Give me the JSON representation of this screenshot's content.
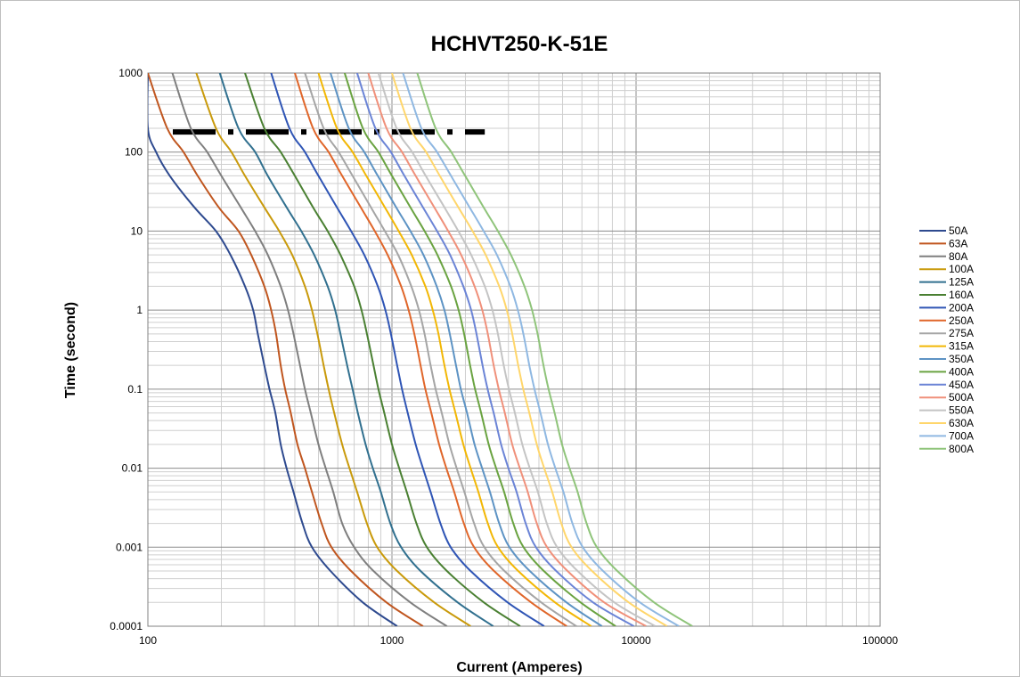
{
  "chart_data": {
    "type": "line",
    "title": "HCHVT250-K-51E",
    "xlabel": "Current (Amperes)",
    "ylabel": "Time (second)",
    "x_scale": "log",
    "y_scale": "log",
    "xlim": [
      100,
      100000
    ],
    "ylim": [
      0.0001,
      1000
    ],
    "x_ticks": [
      "100",
      "1000",
      "10000",
      "100000"
    ],
    "y_ticks": [
      "0.0001",
      "0.001",
      "0.01",
      "0.1",
      "1",
      "10",
      "100",
      "1000"
    ],
    "grid": "major and minor",
    "legend_position": "right",
    "reference_line": {
      "style": "dash-dot",
      "color": "#000000",
      "y": 180,
      "x_range": [
        100,
        2400
      ]
    },
    "curve_time_points": [
      1000,
      200,
      100,
      50,
      20,
      10,
      5,
      2,
      1,
      0.5,
      0.2,
      0.1,
      0.05,
      0.02,
      0.01,
      0.005,
      0.002,
      0.001,
      0.0005,
      0.0002,
      0.0001
    ],
    "series": [
      {
        "name": "50A",
        "color": "#2e4a8f",
        "current": [
          100,
          100,
          108,
          123,
          155,
          190,
          218,
          250,
          270,
          282,
          300,
          315,
          333,
          350,
          370,
          395,
          430,
          470,
          560,
          760,
          1050
        ]
      },
      {
        "name": "63A",
        "color": "#c0561f",
        "current": [
          100,
          120,
          140,
          160,
          195,
          235,
          265,
          300,
          320,
          335,
          350,
          365,
          385,
          410,
          440,
          470,
          515,
          565,
          680,
          950,
          1340
        ]
      },
      {
        "name": "80A",
        "color": "#7f7f7f",
        "current": [
          126,
          150,
          175,
          200,
          240,
          275,
          310,
          350,
          375,
          395,
          420,
          440,
          465,
          500,
          535,
          575,
          625,
          700,
          840,
          1190,
          1680
        ]
      },
      {
        "name": "100A",
        "color": "#c99a0b",
        "current": [
          158,
          190,
          220,
          250,
          300,
          345,
          390,
          440,
          470,
          495,
          525,
          550,
          580,
          625,
          670,
          720,
          790,
          870,
          1050,
          1490,
          2100
        ]
      },
      {
        "name": "125A",
        "color": "#31708f",
        "current": [
          197,
          235,
          275,
          310,
          370,
          425,
          480,
          545,
          585,
          615,
          655,
          690,
          725,
          780,
          835,
          900,
          985,
          1090,
          1310,
          1860,
          2600
        ]
      },
      {
        "name": "160A",
        "color": "#4a8032",
        "current": [
          250,
          300,
          350,
          400,
          475,
          545,
          615,
          700,
          750,
          790,
          840,
          880,
          930,
          1000,
          1070,
          1150,
          1260,
          1390,
          1680,
          2380,
          3350
        ]
      },
      {
        "name": "200A",
        "color": "#2f55b5",
        "current": [
          320,
          380,
          440,
          500,
          595,
          680,
          770,
          875,
          940,
          990,
          1050,
          1100,
          1160,
          1250,
          1340,
          1440,
          1580,
          1740,
          2100,
          2980,
          4200
        ]
      },
      {
        "name": "250A",
        "color": "#e0662a",
        "current": [
          400,
          475,
          550,
          625,
          745,
          850,
          960,
          1090,
          1170,
          1235,
          1310,
          1370,
          1450,
          1560,
          1670,
          1800,
          1970,
          2170,
          2620,
          3720,
          5200
        ]
      },
      {
        "name": "275A",
        "color": "#a5a5a5",
        "current": [
          440,
          525,
          605,
          690,
          820,
          935,
          1060,
          1200,
          1290,
          1360,
          1440,
          1510,
          1600,
          1720,
          1840,
          1980,
          2170,
          2390,
          2890,
          4090,
          5700
        ]
      },
      {
        "name": "315A",
        "color": "#f2b705",
        "current": [
          500,
          595,
          690,
          785,
          935,
          1065,
          1205,
          1370,
          1470,
          1550,
          1640,
          1720,
          1820,
          1960,
          2100,
          2260,
          2470,
          2720,
          3290,
          4660,
          6550
        ]
      },
      {
        "name": "350A",
        "color": "#5d93c4",
        "current": [
          560,
          665,
          770,
          875,
          1040,
          1190,
          1345,
          1525,
          1640,
          1725,
          1830,
          1915,
          2030,
          2180,
          2340,
          2520,
          2750,
          3030,
          3670,
          5190,
          7250
        ]
      },
      {
        "name": "400A",
        "color": "#6aa341",
        "current": [
          640,
          760,
          880,
          1000,
          1190,
          1360,
          1535,
          1745,
          1875,
          1975,
          2090,
          2190,
          2320,
          2490,
          2670,
          2880,
          3140,
          3460,
          4190,
          5930,
          8250
        ]
      },
      {
        "name": "450A",
        "color": "#6b84d6",
        "current": [
          720,
          855,
          990,
          1125,
          1340,
          1530,
          1730,
          1960,
          2110,
          2220,
          2350,
          2465,
          2610,
          2800,
          3000,
          3240,
          3530,
          3890,
          4710,
          6670,
          9800
        ]
      },
      {
        "name": "500A",
        "color": "#f0907a",
        "current": [
          800,
          950,
          1100,
          1250,
          1490,
          1700,
          1920,
          2180,
          2345,
          2470,
          2610,
          2740,
          2900,
          3110,
          3340,
          3600,
          3920,
          4320,
          5240,
          7410,
          11000
        ]
      },
      {
        "name": "550A",
        "color": "#c4c4c4",
        "current": [
          880,
          1045,
          1210,
          1375,
          1640,
          1870,
          2110,
          2400,
          2580,
          2715,
          2870,
          3015,
          3190,
          3420,
          3670,
          3960,
          4310,
          4750,
          5760,
          8150,
          12000
        ]
      },
      {
        "name": "630A",
        "color": "#ffd66b",
        "current": [
          1000,
          1190,
          1380,
          1570,
          1870,
          2140,
          2420,
          2750,
          2955,
          3110,
          3290,
          3450,
          3655,
          3920,
          4205,
          4535,
          4940,
          5440,
          6600,
          9340,
          13400
        ]
      },
      {
        "name": "700A",
        "color": "#8fb8e2",
        "current": [
          1110,
          1320,
          1530,
          1745,
          2080,
          2375,
          2690,
          3055,
          3280,
          3455,
          3655,
          3835,
          4060,
          4355,
          4670,
          5040,
          5490,
          6050,
          7330,
          10380,
          15000
        ]
      },
      {
        "name": "800A",
        "color": "#8fc47a",
        "current": [
          1270,
          1510,
          1750,
          1995,
          2375,
          2715,
          3070,
          3490,
          3750,
          3950,
          4175,
          4380,
          4640,
          4975,
          5340,
          5760,
          6270,
          6910,
          8380,
          11860,
          17000
        ]
      }
    ]
  }
}
